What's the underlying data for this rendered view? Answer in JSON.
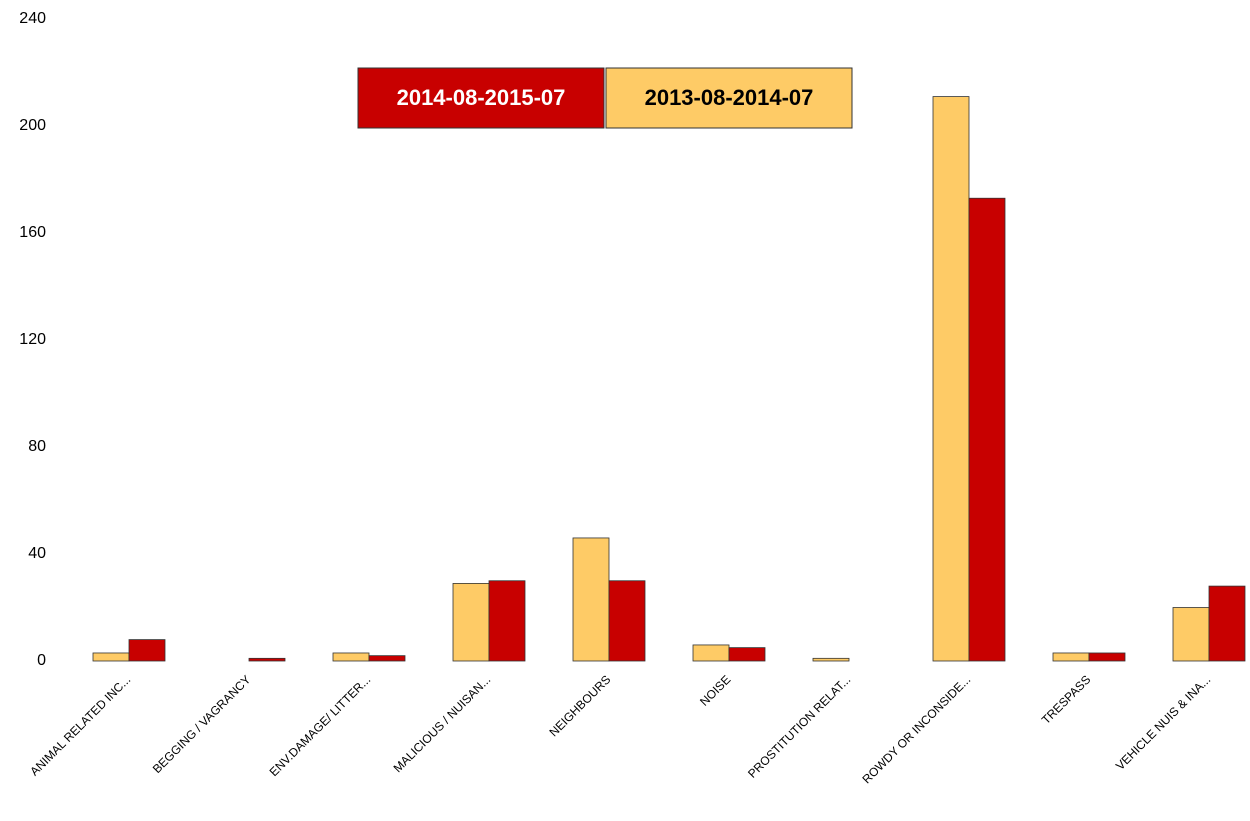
{
  "chart_data": {
    "type": "bar",
    "categories": [
      "ANIMAL RELATED INC...",
      "BEGGING / VAGRANCY",
      "ENV.DAMAGE/ LITTER...",
      "MALICIOUS / NUISAN...",
      "NEIGHBOURS",
      "NOISE",
      "PROSTITUTION RELAT...",
      "ROWDY OR INCONSIDE...",
      "TRESPASS",
      "VEHICLE NUIS & INA..."
    ],
    "series": [
      {
        "name": "2013-08-2014-07",
        "color": "#fecb66",
        "values": [
          3,
          0,
          3,
          29,
          46,
          6,
          1,
          211,
          3,
          20
        ]
      },
      {
        "name": "2014-08-2015-07",
        "color": "#c80000",
        "values": [
          8,
          1,
          2,
          30,
          30,
          5,
          0,
          173,
          3,
          28
        ]
      }
    ],
    "ylim": [
      0,
      240
    ],
    "yticks": [
      0,
      40,
      80,
      120,
      160,
      200,
      240
    ],
    "grid": false
  }
}
